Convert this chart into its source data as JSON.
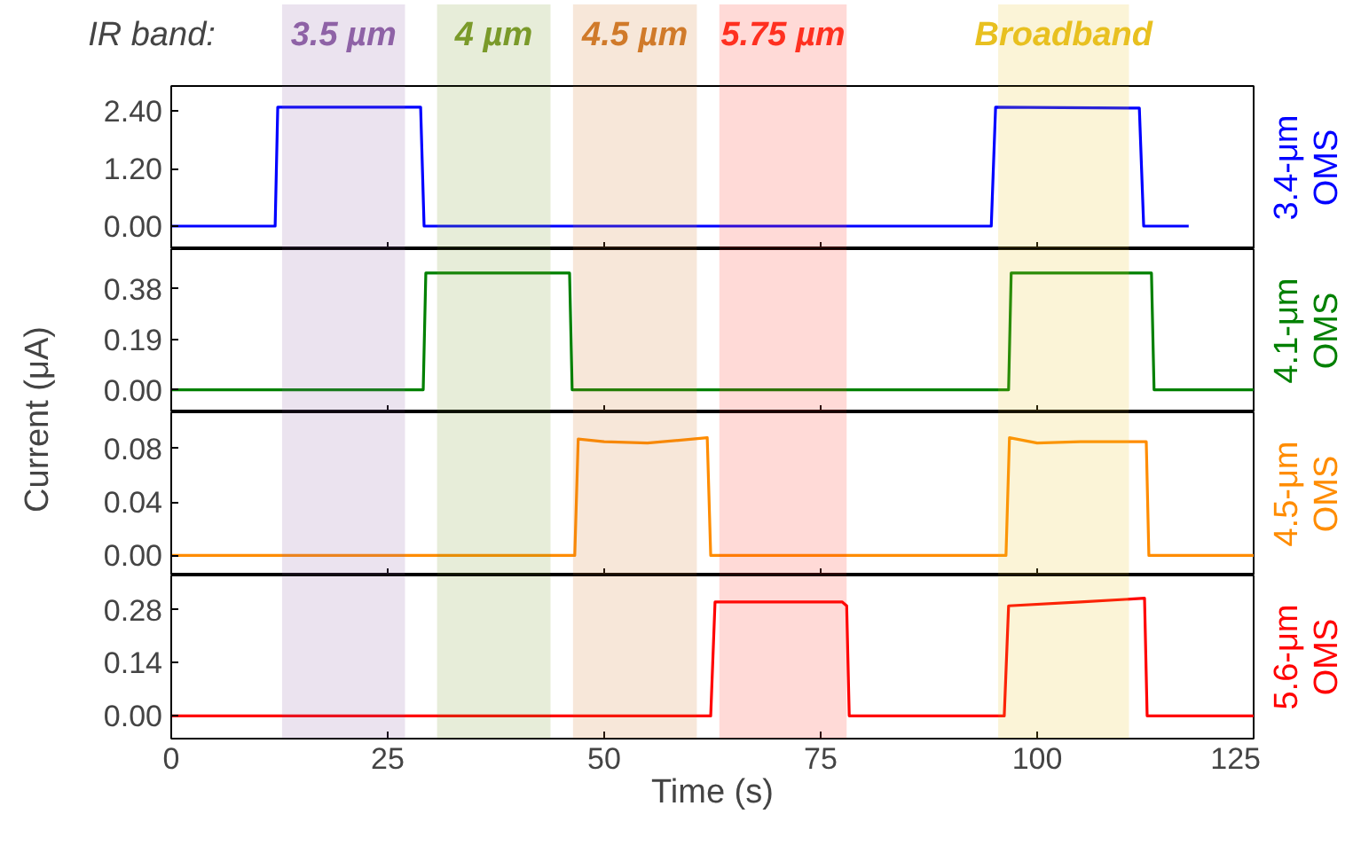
{
  "chart_data": [
    {
      "type": "line",
      "annotations": [
        "IR band:"
      ],
      "xlim": [
        0,
        125
      ],
      "xticks": [
        0,
        25,
        50,
        75,
        100,
        125
      ],
      "ylim": [
        -0.48,
        2.92
      ],
      "yticks": [
        {
          "value": 0,
          "label": "0.00"
        },
        {
          "value": 1.2,
          "label": "1.20"
        },
        {
          "value": 2.4,
          "label": "2.40"
        }
      ],
      "tick_labels": "y",
      "grid": false,
      "bands": [
        {
          "axis": "x",
          "from": 12.8,
          "to": 27,
          "label": "3.5 µm",
          "color": "#8e62a6"
        },
        {
          "axis": "x",
          "from": 30.7,
          "to": 43.8,
          "label": "4 µm",
          "color": "#7a9a2a"
        },
        {
          "axis": "x",
          "from": 46.4,
          "to": 60.7,
          "label": "4.5 µm",
          "color": "#d07a2a"
        },
        {
          "axis": "x",
          "from": 63.3,
          "to": 78,
          "label": "5.75 µm",
          "color": "#ff3020"
        },
        {
          "axis": "x",
          "from": 95.5,
          "to": 110.6,
          "label": "Broadband",
          "color": "#e8c020"
        }
      ],
      "series": [
        {
          "name": "3.4-μm OMS",
          "color": "#0000ff",
          "x": [
            0,
            12,
            12.3,
            28.8,
            29.2,
            94.7,
            95.2,
            111.8,
            112.3,
            117.5
          ],
          "values": [
            0,
            0,
            2.48,
            2.48,
            0,
            0,
            2.48,
            2.46,
            0,
            0
          ]
        }
      ]
    },
    {
      "type": "line",
      "xlim": [
        0,
        125
      ],
      "xticks": [
        0,
        25,
        50,
        75,
        100,
        125
      ],
      "ylim": [
        -0.085,
        0.53
      ],
      "yticks": [
        {
          "value": 0,
          "label": "0.00"
        },
        {
          "value": 0.19,
          "label": "0.19"
        },
        {
          "value": 0.38,
          "label": "0.38"
        }
      ],
      "tick_labels": "y",
      "grid": false,
      "ylabel": "Current (μA)",
      "bands": [
        {
          "axis": "x",
          "from": 12.8,
          "to": 27,
          "color": "#8e62a6"
        },
        {
          "axis": "x",
          "from": 30.7,
          "to": 43.8,
          "color": "#7a9a2a"
        },
        {
          "axis": "x",
          "from": 46.4,
          "to": 60.7,
          "color": "#d07a2a"
        },
        {
          "axis": "x",
          "from": 63.3,
          "to": 78,
          "color": "#ff3020"
        },
        {
          "axis": "x",
          "from": 95.5,
          "to": 110.6,
          "color": "#e8c020"
        }
      ],
      "series": [
        {
          "name": "4.1-μm OMS",
          "color": "#008000",
          "x": [
            0,
            29.1,
            29.4,
            46.0,
            46.3,
            96.7,
            97.0,
            113.2,
            113.5,
            125
          ],
          "values": [
            0,
            0,
            0.44,
            0.44,
            0,
            0,
            0.44,
            0.44,
            0,
            0
          ]
        }
      ]
    },
    {
      "type": "line",
      "xlim": [
        0,
        125
      ],
      "xticks": [
        0,
        25,
        50,
        75,
        100,
        125
      ],
      "ylim": [
        -0.015,
        0.107
      ],
      "yticks": [
        {
          "value": 0,
          "label": "0.00"
        },
        {
          "value": 0.04,
          "label": "0.04"
        },
        {
          "value": 0.08,
          "label": "0.08"
        }
      ],
      "tick_labels": "y",
      "grid": false,
      "bands": [
        {
          "axis": "x",
          "from": 12.8,
          "to": 27,
          "color": "#8e62a6"
        },
        {
          "axis": "x",
          "from": 30.7,
          "to": 43.8,
          "color": "#7a9a2a"
        },
        {
          "axis": "x",
          "from": 46.4,
          "to": 60.7,
          "color": "#d07a2a"
        },
        {
          "axis": "x",
          "from": 63.3,
          "to": 78,
          "color": "#ff3020"
        },
        {
          "axis": "x",
          "from": 95.5,
          "to": 110.6,
          "color": "#e8c020"
        }
      ],
      "series": [
        {
          "name": "4.5-μm OMS",
          "color": "#ff8c00",
          "x": [
            0,
            46.6,
            47.0,
            50,
            55,
            61.9,
            62.3,
            96.4,
            96.8,
            100,
            105,
            112.6,
            112.9,
            125
          ],
          "values": [
            0,
            0,
            0.087,
            0.085,
            0.084,
            0.088,
            0,
            0,
            0.088,
            0.084,
            0.085,
            0.085,
            0,
            0
          ]
        }
      ]
    },
    {
      "type": "line",
      "xlim": [
        0,
        125
      ],
      "xticks": [
        0,
        25,
        50,
        75,
        100,
        125
      ],
      "ylim": [
        -0.06,
        0.37
      ],
      "yticks": [
        {
          "value": 0,
          "label": "0.00"
        },
        {
          "value": 0.14,
          "label": "0.14"
        },
        {
          "value": 0.28,
          "label": "0.28"
        }
      ],
      "grid": false,
      "xlabel": "Time (s)",
      "bands": [
        {
          "axis": "x",
          "from": 12.8,
          "to": 27,
          "color": "#8e62a6"
        },
        {
          "axis": "x",
          "from": 30.7,
          "to": 43.8,
          "color": "#7a9a2a"
        },
        {
          "axis": "x",
          "from": 46.4,
          "to": 60.7,
          "color": "#d07a2a"
        },
        {
          "axis": "x",
          "from": 63.3,
          "to": 78,
          "color": "#ff3020"
        },
        {
          "axis": "x",
          "from": 95.5,
          "to": 110.6,
          "color": "#e8c020"
        }
      ],
      "series": [
        {
          "name": "5.6-μm OMS",
          "color": "#ff0000",
          "x": [
            0,
            62.3,
            62.8,
            70,
            77.5,
            78.0,
            78.3,
            96.2,
            96.7,
            105,
            112.4,
            112.7,
            125
          ],
          "values": [
            0,
            0,
            0.3,
            0.3,
            0.3,
            0.29,
            0,
            0,
            0.29,
            0.3,
            0.31,
            0,
            0
          ]
        }
      ]
    }
  ]
}
